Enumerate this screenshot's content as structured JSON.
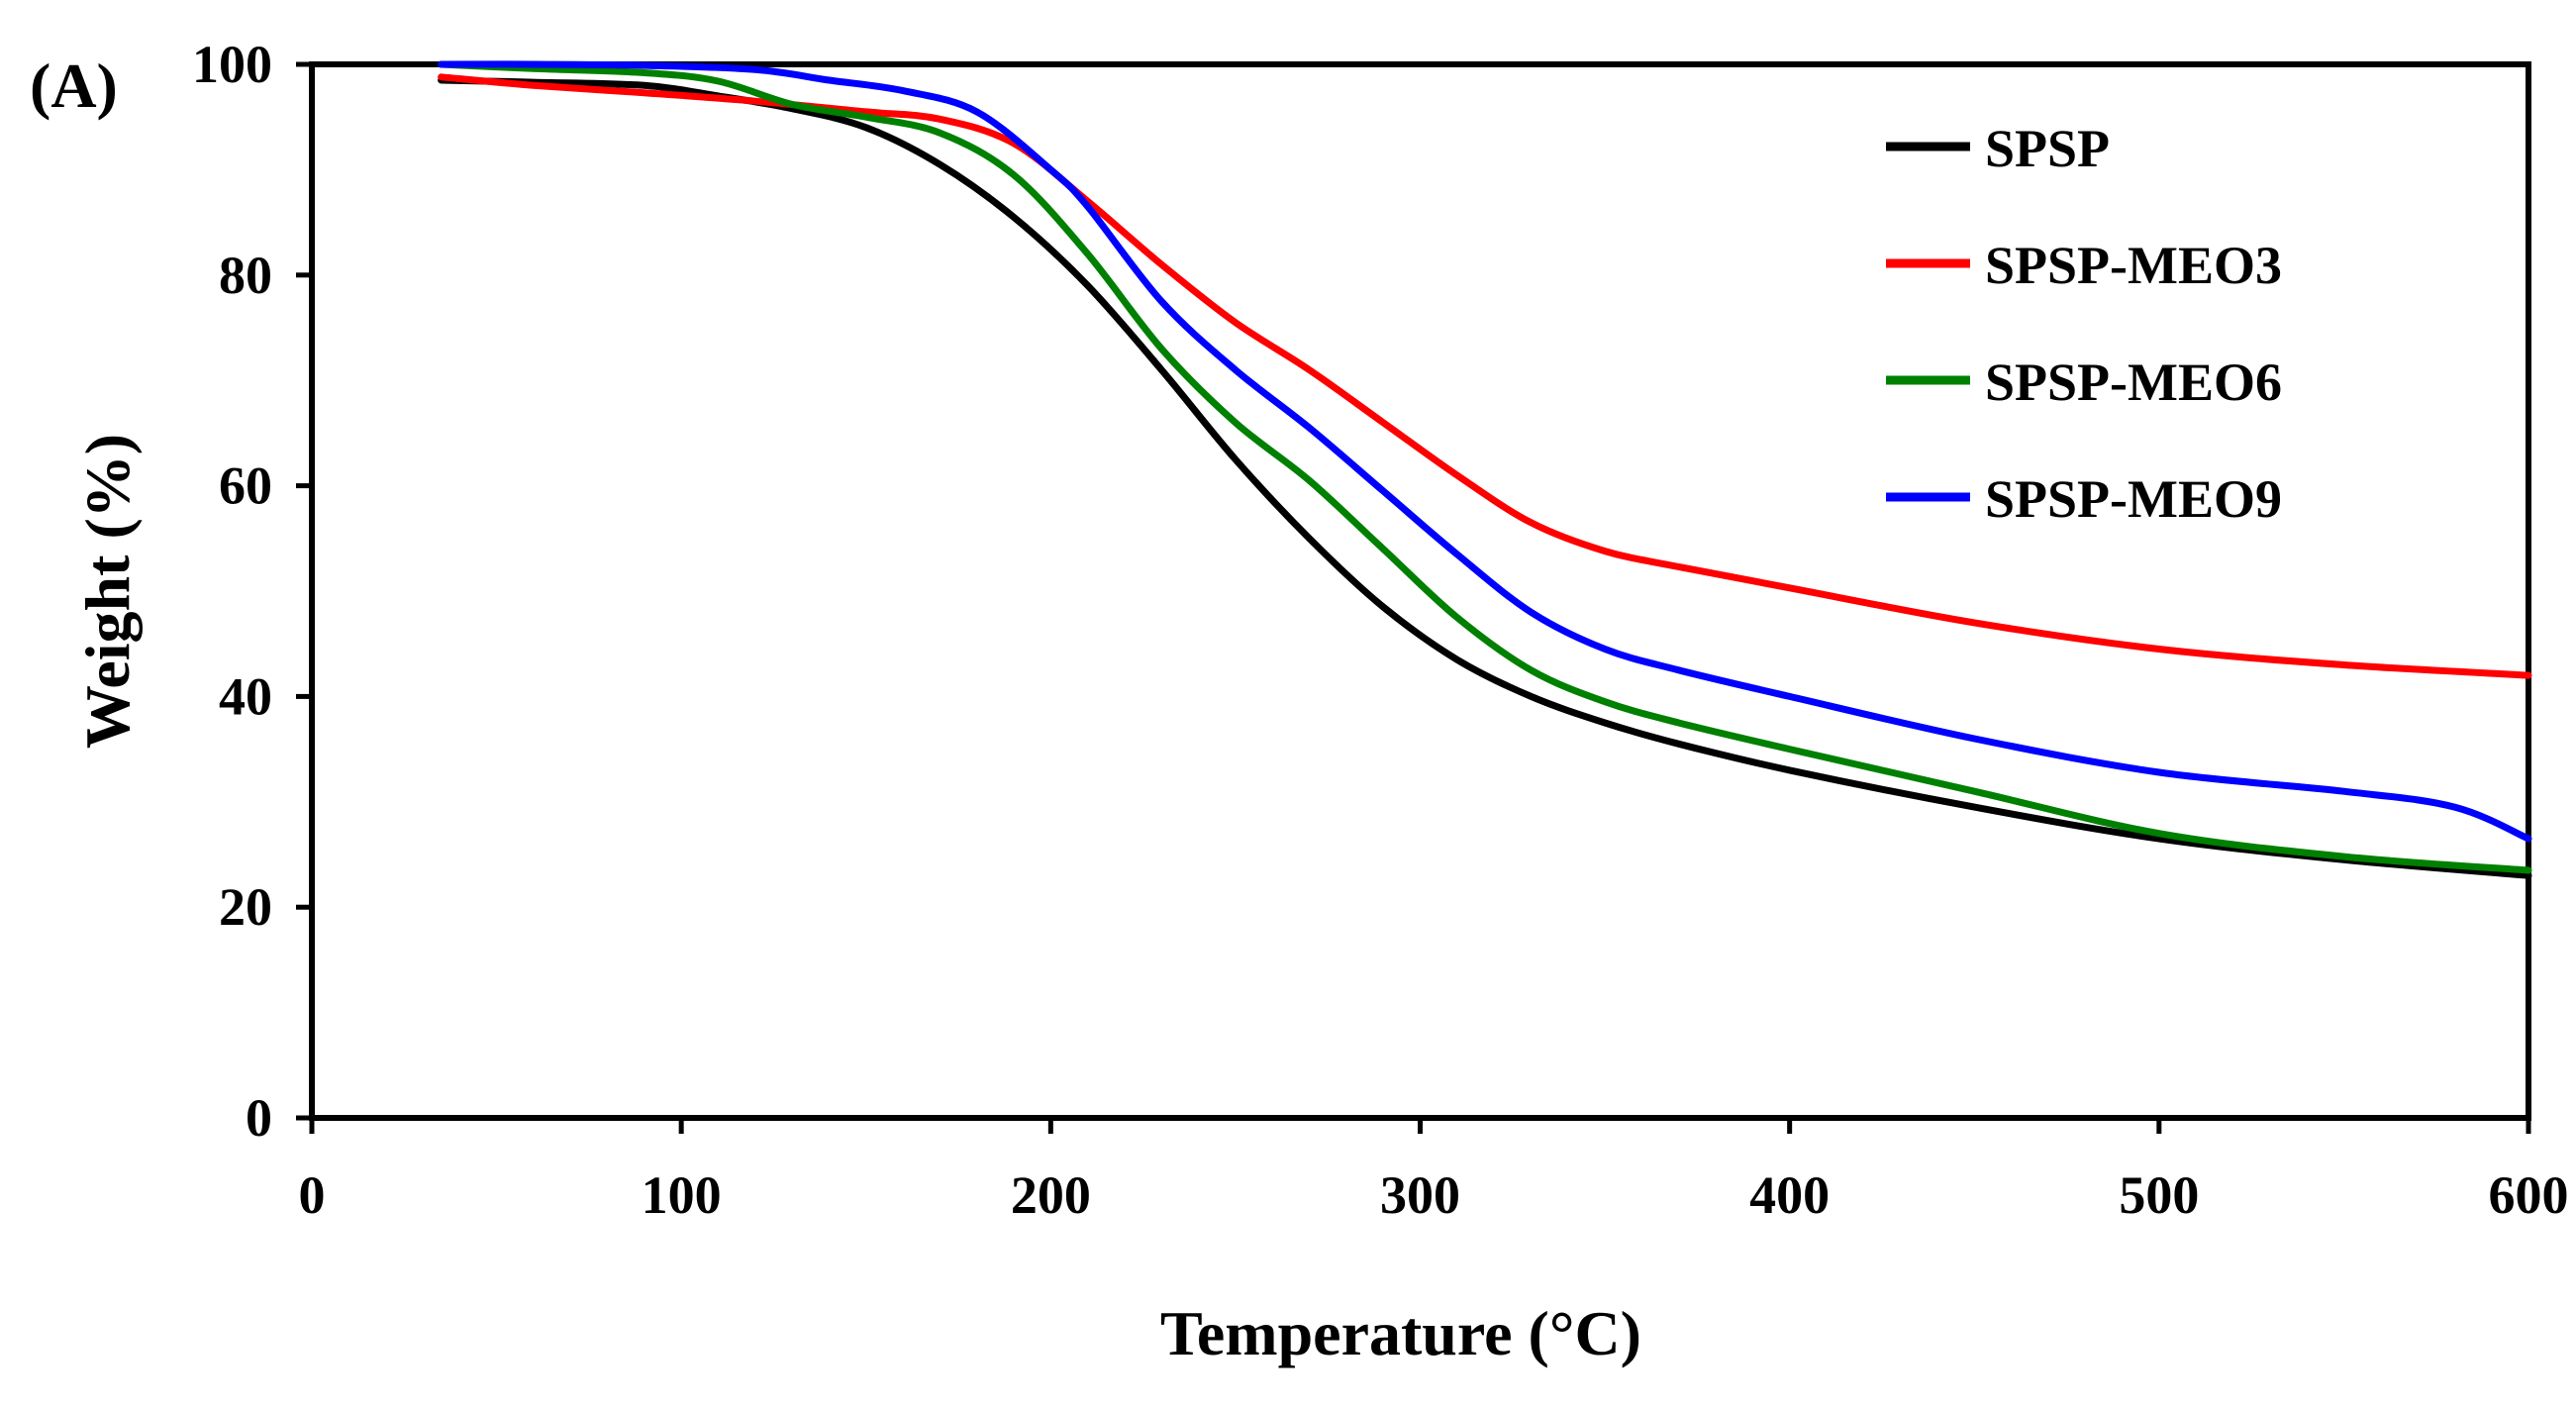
{
  "panel_label": "(A)",
  "chart_data": {
    "type": "line",
    "title": "",
    "xlabel": "Temperature (°C)",
    "ylabel": "Weight (%)",
    "xlim": [
      0,
      600
    ],
    "ylim": [
      0,
      100
    ],
    "xticks": [
      0,
      100,
      200,
      300,
      400,
      500,
      600
    ],
    "yticks": [
      0,
      20,
      40,
      60,
      80,
      100
    ],
    "grid": false,
    "legend_position": "top-right",
    "series": [
      {
        "name": "SPSP",
        "color": "#000000",
        "x": [
          35,
          60,
          90,
          110,
          130,
          150,
          170,
          190,
          210,
          230,
          250,
          270,
          290,
          310,
          330,
          350,
          370,
          400,
          450,
          500,
          550,
          600
        ],
        "y": [
          98.5,
          98.3,
          98.0,
          97.0,
          95.8,
          94.0,
          90.5,
          85.5,
          79.0,
          71.0,
          62.5,
          55.0,
          48.5,
          43.5,
          40.0,
          37.5,
          35.5,
          33.0,
          29.5,
          26.5,
          24.5,
          23.0
        ]
      },
      {
        "name": "SPSP-MEO3",
        "color": "#ff0000",
        "x": [
          35,
          60,
          90,
          120,
          150,
          170,
          190,
          210,
          230,
          250,
          270,
          290,
          310,
          330,
          350,
          370,
          400,
          450,
          500,
          550,
          600
        ],
        "y": [
          98.8,
          98.0,
          97.3,
          96.5,
          95.5,
          94.8,
          92.5,
          87.0,
          81.0,
          75.5,
          71.0,
          66.0,
          61.0,
          56.5,
          53.8,
          52.3,
          50.3,
          47.0,
          44.5,
          43.0,
          42.0
        ]
      },
      {
        "name": "SPSP-MEO6",
        "color": "#008000",
        "x": [
          35,
          60,
          90,
          110,
          130,
          150,
          170,
          190,
          210,
          230,
          250,
          270,
          290,
          310,
          330,
          350,
          370,
          400,
          450,
          500,
          550,
          600
        ],
        "y": [
          100.0,
          99.6,
          99.2,
          98.4,
          96.2,
          95.0,
          93.5,
          89.5,
          82.0,
          73.0,
          66.0,
          60.5,
          54.0,
          47.5,
          42.5,
          39.5,
          37.5,
          35.0,
          31.0,
          27.0,
          24.8,
          23.5
        ]
      },
      {
        "name": "SPSP-MEO9",
        "color": "#0000ff",
        "x": [
          35,
          60,
          90,
          120,
          140,
          160,
          180,
          200,
          210,
          230,
          250,
          270,
          290,
          310,
          330,
          350,
          370,
          400,
          450,
          500,
          550,
          580,
          600
        ],
        "y": [
          100.0,
          100.0,
          99.9,
          99.5,
          98.5,
          97.5,
          95.5,
          90.0,
          86.5,
          77.5,
          71.0,
          65.5,
          59.5,
          53.5,
          48.0,
          44.5,
          42.5,
          40.0,
          36.0,
          32.8,
          31.0,
          29.5,
          26.5
        ]
      }
    ]
  }
}
